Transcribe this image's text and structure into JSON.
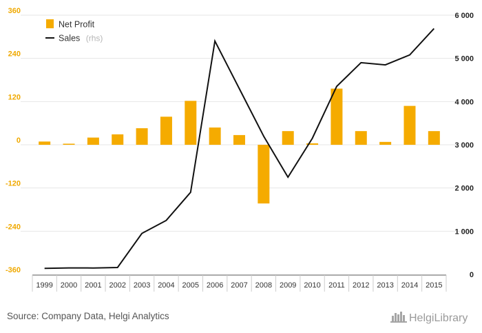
{
  "chart_data": {
    "type": "bar+line",
    "categories": [
      "1999",
      "2000",
      "2001",
      "2002",
      "2003",
      "2004",
      "2005",
      "2006",
      "2007",
      "2008",
      "2009",
      "2010",
      "2011",
      "2012",
      "2013",
      "2014",
      "2015"
    ],
    "series": [
      {
        "name": "Net Profit",
        "type": "bar",
        "axis": "left",
        "color": "#f5ab00",
        "values": [
          9,
          3,
          20,
          29,
          46,
          78,
          122,
          48,
          27,
          -163,
          38,
          4,
          156,
          38,
          8,
          108,
          38
        ]
      },
      {
        "name": "Sales",
        "name_suffix": "(rhs)",
        "type": "line",
        "axis": "right",
        "color": "#111111",
        "values": [
          140,
          150,
          148,
          160,
          950,
          1250,
          1900,
          5400,
          4300,
          3200,
          2250,
          3150,
          4350,
          4900,
          4850,
          5080,
          5690
        ]
      }
    ],
    "left_axis": {
      "ylim": [
        -360,
        360
      ],
      "ticks": [
        360,
        240,
        120,
        0,
        -120,
        -240,
        -360
      ],
      "tick_labels": [
        "360",
        "240",
        "120",
        "0",
        "-120",
        "-240",
        "-360"
      ]
    },
    "right_axis": {
      "ylim": [
        0,
        6000
      ],
      "ticks": [
        6000,
        5000,
        4000,
        3000,
        2000,
        1000,
        0
      ],
      "tick_labels": [
        "6 000",
        "5 000",
        "4 000",
        "3 000",
        "2 000",
        "1 000",
        "0"
      ]
    },
    "legend_position": "top-left",
    "grid": true
  },
  "legend": {
    "net_profit_label": "Net Profit",
    "sales_label": "Sales",
    "sales_suffix": "(rhs)"
  },
  "footer": {
    "source": "Source: Company Data, Helgi Analytics",
    "brand": "HelgiLibrary"
  },
  "colors": {
    "bar": "#f5ab00",
    "line": "#111111",
    "left_axis_text": "#f0a900",
    "grid": "#e6e6e6"
  }
}
